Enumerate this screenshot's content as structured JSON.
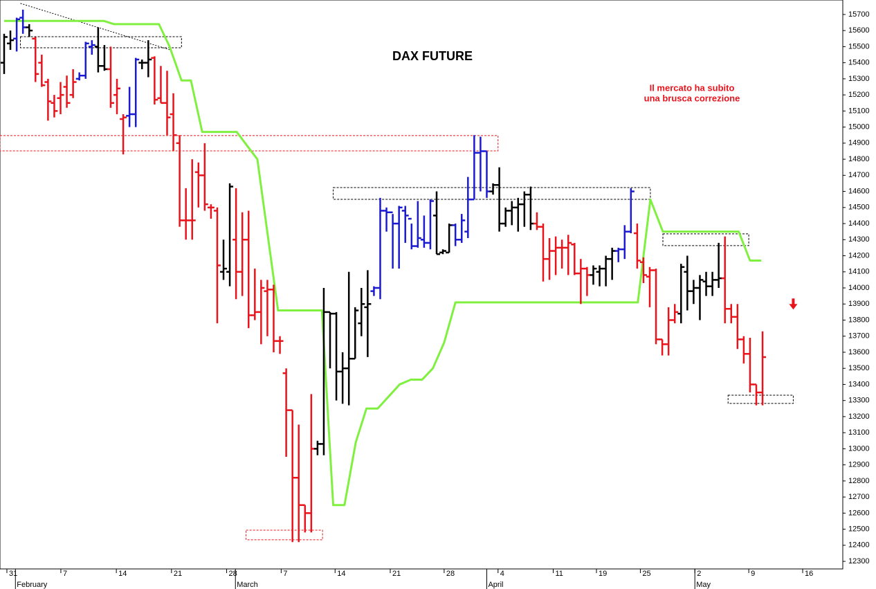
{
  "chart_data": {
    "type": "ohlc",
    "title": "DAX FUTURE",
    "annotation": [
      "Il mercato ha subito",
      "una brusca correzione"
    ],
    "xlim": [
      -0.66,
      133.8
    ],
    "ylim": [
      12253,
      15790
    ],
    "yticks": [
      12300,
      12400,
      12500,
      12600,
      12700,
      12800,
      12900,
      13000,
      13100,
      13200,
      13300,
      13400,
      13500,
      13600,
      13700,
      13800,
      13900,
      14000,
      14100,
      14200,
      14300,
      14400,
      14500,
      14600,
      14700,
      14800,
      14900,
      15000,
      15100,
      15200,
      15300,
      15400,
      15500,
      15600,
      15700
    ],
    "xticks": [
      {
        "value": 0.44,
        "label": "31"
      },
      {
        "value": 9.05,
        "label": "7"
      },
      {
        "value": 17.9,
        "label": "14"
      },
      {
        "value": 26.7,
        "label": "21"
      },
      {
        "value": 35.5,
        "label": "28"
      },
      {
        "value": 44.2,
        "label": "7"
      },
      {
        "value": 52.8,
        "label": "14"
      },
      {
        "value": 61.6,
        "label": "21"
      },
      {
        "value": 70.2,
        "label": "28"
      },
      {
        "value": 78.8,
        "label": "4"
      },
      {
        "value": 87.6,
        "label": "11"
      },
      {
        "value": 94.5,
        "label": "19"
      },
      {
        "value": 101.5,
        "label": "25"
      },
      {
        "value": 110.2,
        "label": "2"
      },
      {
        "value": 118.8,
        "label": "9"
      },
      {
        "value": 127.4,
        "label": "16"
      }
    ],
    "months": [
      {
        "value": 1.8,
        "label": "February"
      },
      {
        "value": 36.9,
        "label": "March"
      },
      {
        "value": 77.0,
        "label": "April"
      },
      {
        "value": 110.2,
        "label": "May"
      }
    ],
    "open": [
      15400,
      15520,
      15550,
      15680,
      15620,
      15550,
      15400,
      15280,
      15150,
      15180,
      15250,
      15200,
      15300,
      15320,
      15500,
      15500,
      15380,
      15360,
      15200,
      15050,
      15070,
      15080,
      15400,
      15400,
      15430,
      15180,
      15150,
      15080,
      14900,
      14420,
      14420,
      14720,
      14700,
      14500,
      14480,
      14100,
      14100,
      14300,
      14100,
      14300,
      13830,
      13850,
      13980,
      13990,
      13670,
      13470,
      13240,
      12820,
      12650,
      12600,
      13000,
      13030,
      13850,
      13840,
      13480,
      13500,
      13560,
      13780,
      13880,
      13980,
      14000,
      14480,
      14470,
      14400,
      14480,
      14430,
      14260,
      14300,
      14280,
      14450,
      14220,
      14220,
      14390,
      14300,
      14350,
      14550,
      14840,
      14850,
      14600,
      14640,
      14400,
      14480,
      14500,
      14520,
      14580,
      14400,
      14380,
      14180,
      14230,
      14250,
      14250,
      14270,
      14090,
      14120,
      14080,
      14100,
      14120,
      14180,
      14230,
      14240,
      14350,
      14340,
      14160,
      14070,
      14110,
      13680,
      13650,
      13800,
      13840,
      14100,
      13980,
      14000,
      14040,
      14010,
      14050,
      14060,
      13870,
      13820,
      13680,
      13590,
      13400,
      13350
    ],
    "high": [
      15580,
      15600,
      15680,
      15730,
      15640,
      15560,
      15450,
      15300,
      15200,
      15280,
      15320,
      15360,
      15340,
      15530,
      15540,
      15620,
      15510,
      15500,
      15300,
      15080,
      15250,
      15430,
      15420,
      15540,
      15440,
      15380,
      15350,
      15210,
      14950,
      14620,
      14800,
      14780,
      14900,
      14520,
      14500,
      14300,
      14650,
      14620,
      14470,
      14480,
      14120,
      14050,
      14050,
      14020,
      13700,
      13500,
      13240,
      13150,
      12650,
      13340,
      13050,
      14000,
      13850,
      13850,
      13600,
      14100,
      13880,
      14000,
      14110,
      14010,
      14560,
      14500,
      14460,
      14510,
      14510,
      14400,
      14540,
      14450,
      14550,
      14600,
      14240,
      14400,
      14400,
      14460,
      14690,
      14950,
      14940,
      14850,
      14650,
      14750,
      14500,
      14540,
      14560,
      14600,
      14630,
      14470,
      14400,
      14310,
      14320,
      14300,
      14330,
      14280,
      14180,
      14130,
      14140,
      14140,
      14200,
      14250,
      14250,
      14390,
      14620,
      14400,
      14190,
      14130,
      14120,
      13680,
      13880,
      13900,
      14150,
      14200,
      14050,
      14080,
      14100,
      14100,
      14280,
      14320,
      13900,
      13900,
      13700,
      13690,
      13400,
      13730
    ],
    "low": [
      15330,
      15480,
      15470,
      15580,
      15560,
      15280,
      15250,
      15040,
      15060,
      15080,
      15120,
      15180,
      15290,
      15300,
      15450,
      15340,
      15350,
      15120,
      15080,
      14830,
      15000,
      15000,
      15360,
      15310,
      15140,
      15150,
      14950,
      14850,
      14380,
      14300,
      14300,
      14500,
      14480,
      14430,
      13780,
      14050,
      14010,
      13930,
      13950,
      13750,
      13800,
      13650,
      13700,
      13600,
      13590,
      12950,
      12420,
      12420,
      12480,
      12480,
      12960,
      12960,
      13500,
      13300,
      13280,
      13270,
      13560,
      13700,
      13570,
      13950,
      13930,
      14350,
      14120,
      14120,
      14280,
      14240,
      14250,
      14250,
      14240,
      14210,
      14210,
      14220,
      14260,
      14280,
      14310,
      14550,
      14600,
      14560,
      14580,
      14350,
      14380,
      14390,
      14350,
      14380,
      14360,
      14360,
      14040,
      14050,
      14080,
      14120,
      14080,
      14080,
      13900,
      13950,
      14020,
      14010,
      14010,
      14050,
      14160,
      14180,
      14340,
      14120,
      14030,
      13880,
      13650,
      13580,
      13580,
      13780,
      13780,
      13860,
      13900,
      13800,
      13950,
      13950,
      14000,
      13780,
      13780,
      13620,
      13530,
      13350,
      13270,
      13270
    ],
    "close": [
      15560,
      15540,
      15670,
      15620,
      15600,
      15330,
      15260,
      15160,
      15100,
      15200,
      15150,
      15280,
      15320,
      15520,
      15510,
      15380,
      15360,
      15150,
      15240,
      15060,
      15080,
      15420,
      15400,
      15420,
      15170,
      15150,
      15060,
      14950,
      14420,
      14420,
      14420,
      14700,
      14520,
      14500,
      14140,
      14120,
      14630,
      14100,
      14300,
      13830,
      13850,
      14000,
      13990,
      13670,
      13670,
      13240,
      12820,
      12650,
      12600,
      13000,
      13030,
      13850,
      13840,
      13480,
      13500,
      13560,
      13860,
      13900,
      13900,
      14000,
      14480,
      14470,
      14400,
      14500,
      14450,
      14260,
      14310,
      14280,
      14540,
      14210,
      14230,
      14390,
      14300,
      14420,
      14550,
      14840,
      14850,
      14600,
      14640,
      14400,
      14480,
      14500,
      14520,
      14580,
      14400,
      14380,
      14180,
      14230,
      14250,
      14250,
      14280,
      14090,
      14120,
      14080,
      14120,
      14120,
      14180,
      14230,
      14240,
      14350,
      14600,
      14170,
      14080,
      14110,
      13680,
      13650,
      13800,
      13850,
      14130,
      13980,
      14000,
      14050,
      14010,
      14050,
      14060,
      13870,
      13820,
      13680,
      13590,
      13400,
      13350,
      13570
    ],
    "colors": [
      "#000",
      "#000",
      "#1a1ad0",
      "#1a1ad0",
      "#000",
      "#e8141c",
      "#e8141c",
      "#e8141c",
      "#e8141c",
      "#e8141c",
      "#e8141c",
      "#e8141c",
      "#1a1ad0",
      "#1a1ad0",
      "#1a1ad0",
      "#000",
      "#000",
      "#e8141c",
      "#e8141c",
      "#e8141c",
      "#1a1ad0",
      "#1a1ad0",
      "#000",
      "#000",
      "#e8141c",
      "#e8141c",
      "#e8141c",
      "#e8141c",
      "#e8141c",
      "#e8141c",
      "#e8141c",
      "#e8141c",
      "#e8141c",
      "#e8141c",
      "#e8141c",
      "#000",
      "#000",
      "#e8141c",
      "#e8141c",
      "#e8141c",
      "#e8141c",
      "#e8141c",
      "#e8141c",
      "#e8141c",
      "#e8141c",
      "#e8141c",
      "#e8141c",
      "#e8141c",
      "#e8141c",
      "#e8141c",
      "#000",
      "#000",
      "#000",
      "#000",
      "#000",
      "#000",
      "#000",
      "#000",
      "#000",
      "#1a1ad0",
      "#1a1ad0",
      "#1a1ad0",
      "#1a1ad0",
      "#1a1ad0",
      "#1a1ad0",
      "#1a1ad0",
      "#1a1ad0",
      "#1a1ad0",
      "#1a1ad0",
      "#000",
      "#000",
      "#000",
      "#1a1ad0",
      "#1a1ad0",
      "#1a1ad0",
      "#1a1ad0",
      "#1a1ad0",
      "#1a1ad0",
      "#000",
      "#000",
      "#000",
      "#000",
      "#000",
      "#000",
      "#000",
      "#e8141c",
      "#e8141c",
      "#e8141c",
      "#e8141c",
      "#e8141c",
      "#e8141c",
      "#e8141c",
      "#e8141c",
      "#e8141c",
      "#000",
      "#000",
      "#000",
      "#000",
      "#1a1ad0",
      "#1a1ad0",
      "#1a1ad0",
      "#e8141c",
      "#e8141c",
      "#e8141c",
      "#e8141c",
      "#e8141c",
      "#e8141c",
      "#e8141c",
      "#000",
      "#000",
      "#000",
      "#000",
      "#000",
      "#000",
      "#000",
      "#e8141c",
      "#e8141c",
      "#e8141c",
      "#e8141c",
      "#e8141c",
      "#e8141c",
      "#e8141c"
    ],
    "stop_line": {
      "color": "#80f040",
      "x": [
        0,
        15.9,
        17.5,
        24.7,
        26.4,
        28.3,
        29.8,
        31.6,
        37.1,
        40.4,
        43.7,
        50.7,
        52.5,
        54.3,
        56.1,
        57.8,
        59.6,
        63.1,
        64.9,
        66.7,
        68.4,
        70.2,
        72.0,
        101.1,
        103.1,
        105.1,
        117.2,
        119.0,
        120.8
      ],
      "values": [
        15660,
        15660,
        15640,
        15640,
        15500,
        15290,
        15290,
        14970,
        14970,
        14800,
        13860,
        13860,
        12650,
        12650,
        13040,
        13250,
        13250,
        13400,
        13430,
        13430,
        13500,
        13660,
        13910,
        13910,
        14550,
        14350,
        14350,
        14170,
        14170
      ]
    },
    "levels": [
      {
        "color": "#000",
        "xlim": [
          2.6,
          28.3
        ],
        "ylim": [
          15493,
          15562
        ]
      },
      {
        "color": "#e8141c",
        "xlim": [
          -0.66,
          78.8
        ],
        "ylim": [
          14852,
          14947
        ]
      },
      {
        "color": "#e8141c",
        "xlim": [
          38.6,
          50.8
        ],
        "ylim": [
          12434,
          12494
        ]
      },
      {
        "color": "#000",
        "xlim": [
          52.5,
          103.1
        ],
        "ylim": [
          14551,
          14624
        ]
      },
      {
        "color": "#000",
        "xlim": [
          105.1,
          118.8
        ],
        "ylim": [
          14263,
          14336
        ]
      },
      {
        "color": "#000",
        "xlim": [
          115.5,
          125.9
        ],
        "ylim": [
          13282,
          13333
        ]
      }
    ],
    "trendline": {
      "x": [
        2.6,
        26.4
      ],
      "values": [
        15769,
        15481
      ]
    },
    "arrow": {
      "x": 125.9,
      "value": 13900,
      "color": "#e8141c"
    }
  }
}
